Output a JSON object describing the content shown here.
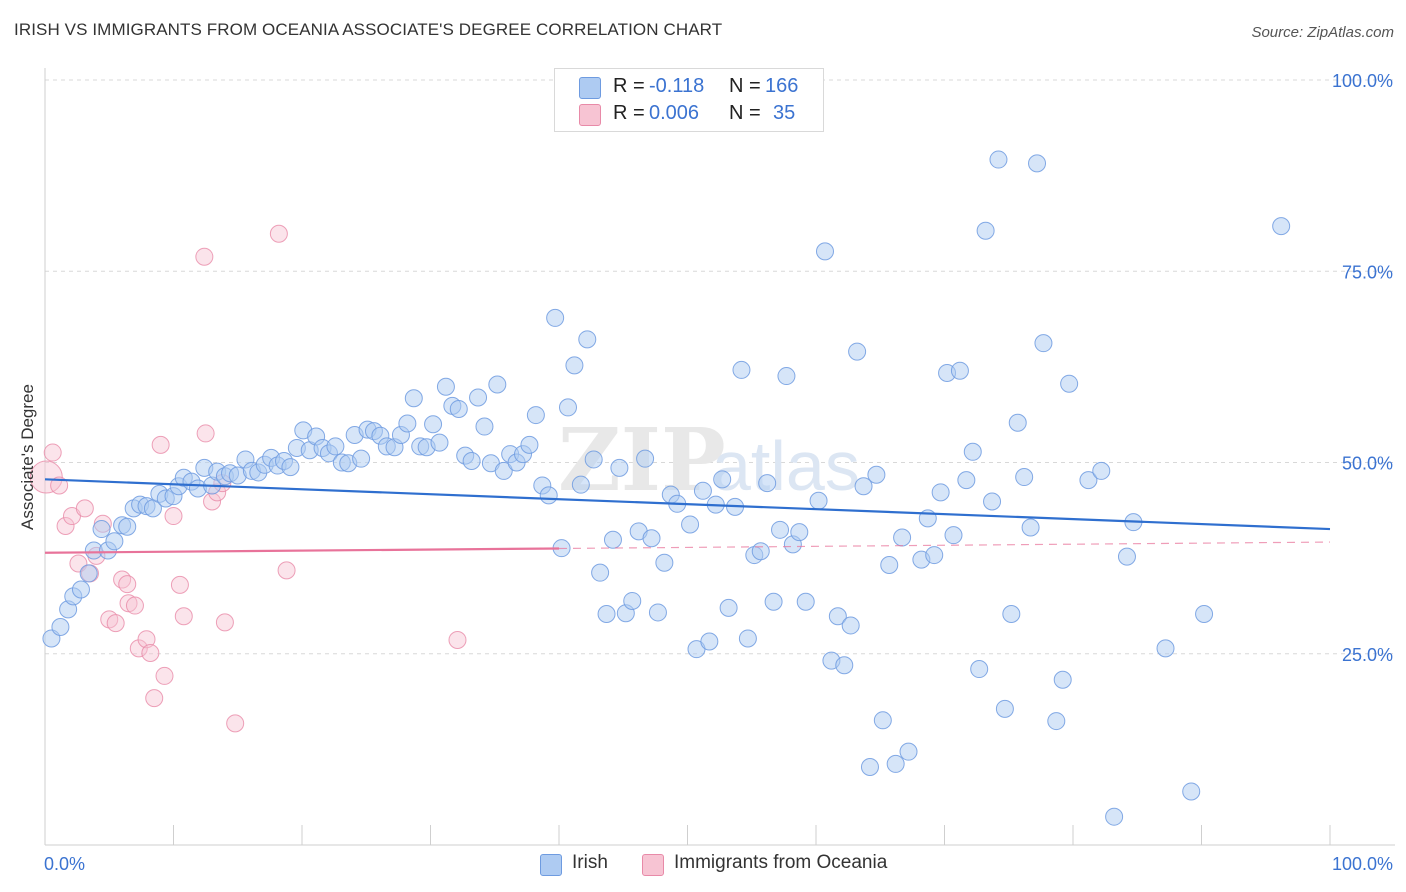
{
  "title": "IRISH VS IMMIGRANTS FROM OCEANIA ASSOCIATE'S DEGREE CORRELATION CHART",
  "source": "Source: ZipAtlas.com",
  "watermark": {
    "zip": "ZIP",
    "atlas": "atlas"
  },
  "colors": {
    "irish_fill": "#aecbf2",
    "irish_stroke": "#6e9be0",
    "irish_line": "#2f6fcf",
    "oceania_fill": "#f7c4d3",
    "oceania_stroke": "#e88aa8",
    "oceania_line": "#e8739a",
    "tick_label": "#3b73d1",
    "grid": "#d8d8d8"
  },
  "stats_legend": [
    {
      "r_label": "R =",
      "r_value": "-0.118",
      "n_label": "N =",
      "n_value": "166"
    },
    {
      "r_label": "R =",
      "r_value": "0.006",
      "n_label": "N =",
      "n_value": "35"
    }
  ],
  "bottom_legend": [
    "Irish",
    "Immigrants from Oceania"
  ],
  "chart_data": {
    "type": "scatter",
    "title": "IRISH VS IMMIGRANTS FROM OCEANIA ASSOCIATE'S DEGREE CORRELATION CHART",
    "xlabel": "",
    "ylabel": "Associate's Degree",
    "xlim": [
      0,
      100
    ],
    "ylim": [
      0,
      100
    ],
    "x_tick_labels": [
      "0.0%",
      "100.0%"
    ],
    "y_tick_labels": [
      "25.0%",
      "50.0%",
      "75.0%",
      "100.0%"
    ],
    "y_ticks": [
      25,
      50,
      75,
      100
    ],
    "grid": "horizontal dashed",
    "legend": "bottom-center",
    "series": [
      {
        "name": "Irish",
        "trend": {
          "x": [
            0,
            100
          ],
          "y": [
            47.8,
            41.3
          ],
          "dashed_from": null
        },
        "points": [
          [
            0.5,
            27.0
          ],
          [
            1.2,
            28.5
          ],
          [
            1.8,
            30.8
          ],
          [
            2.2,
            32.5
          ],
          [
            2.8,
            33.4
          ],
          [
            3.4,
            35.5
          ],
          [
            3.8,
            38.5
          ],
          [
            4.4,
            41.3
          ],
          [
            4.9,
            38.5
          ],
          [
            5.4,
            39.7
          ],
          [
            6.0,
            41.8
          ],
          [
            6.4,
            41.6
          ],
          [
            6.9,
            44.0
          ],
          [
            7.4,
            44.5
          ],
          [
            7.9,
            44.3
          ],
          [
            8.4,
            44.0
          ],
          [
            8.9,
            45.9
          ],
          [
            9.4,
            45.3
          ],
          [
            10.0,
            45.6
          ],
          [
            10.4,
            46.9
          ],
          [
            10.8,
            48.0
          ],
          [
            11.4,
            47.5
          ],
          [
            11.9,
            46.6
          ],
          [
            12.4,
            49.3
          ],
          [
            13.0,
            47.0
          ],
          [
            13.4,
            48.8
          ],
          [
            14.0,
            48.2
          ],
          [
            14.4,
            48.6
          ],
          [
            15.0,
            48.3
          ],
          [
            15.6,
            50.4
          ],
          [
            16.1,
            48.9
          ],
          [
            16.6,
            48.7
          ],
          [
            17.1,
            49.7
          ],
          [
            17.6,
            50.6
          ],
          [
            18.1,
            49.6
          ],
          [
            18.6,
            50.2
          ],
          [
            19.1,
            49.4
          ],
          [
            19.6,
            51.9
          ],
          [
            20.1,
            54.2
          ],
          [
            20.6,
            51.6
          ],
          [
            21.1,
            53.4
          ],
          [
            21.6,
            51.9
          ],
          [
            22.1,
            51.2
          ],
          [
            22.6,
            52.1
          ],
          [
            23.1,
            50.0
          ],
          [
            23.6,
            49.9
          ],
          [
            24.1,
            53.6
          ],
          [
            24.6,
            50.5
          ],
          [
            25.1,
            54.3
          ],
          [
            25.6,
            54.1
          ],
          [
            26.1,
            53.5
          ],
          [
            26.6,
            52.1
          ],
          [
            27.2,
            52.0
          ],
          [
            27.7,
            53.6
          ],
          [
            28.2,
            55.1
          ],
          [
            28.7,
            58.4
          ],
          [
            29.2,
            52.1
          ],
          [
            29.7,
            52.0
          ],
          [
            30.2,
            55.0
          ],
          [
            30.7,
            52.6
          ],
          [
            31.2,
            59.9
          ],
          [
            31.7,
            57.4
          ],
          [
            32.2,
            57.0
          ],
          [
            32.7,
            50.9
          ],
          [
            33.2,
            50.2
          ],
          [
            33.7,
            58.5
          ],
          [
            34.2,
            54.7
          ],
          [
            34.7,
            49.9
          ],
          [
            35.2,
            60.2
          ],
          [
            35.7,
            48.9
          ],
          [
            36.2,
            51.1
          ],
          [
            36.7,
            50.0
          ],
          [
            37.2,
            51.1
          ],
          [
            37.7,
            52.3
          ],
          [
            38.2,
            56.2
          ],
          [
            38.7,
            47.0
          ],
          [
            39.2,
            45.7
          ],
          [
            39.7,
            68.9
          ],
          [
            40.2,
            38.8
          ],
          [
            40.7,
            57.2
          ],
          [
            41.2,
            62.7
          ],
          [
            41.7,
            47.1
          ],
          [
            42.2,
            66.1
          ],
          [
            42.7,
            50.4
          ],
          [
            43.2,
            35.6
          ],
          [
            43.7,
            30.2
          ],
          [
            44.2,
            39.9
          ],
          [
            44.7,
            49.3
          ],
          [
            45.2,
            30.3
          ],
          [
            45.7,
            31.9
          ],
          [
            46.2,
            41.0
          ],
          [
            46.7,
            50.5
          ],
          [
            47.2,
            40.1
          ],
          [
            47.7,
            30.4
          ],
          [
            48.2,
            36.9
          ],
          [
            48.7,
            45.8
          ],
          [
            49.2,
            44.6
          ],
          [
            50.2,
            41.9
          ],
          [
            50.7,
            25.6
          ],
          [
            51.2,
            46.3
          ],
          [
            51.7,
            26.6
          ],
          [
            52.2,
            44.5
          ],
          [
            52.7,
            47.8
          ],
          [
            53.2,
            31.0
          ],
          [
            53.7,
            44.2
          ],
          [
            54.2,
            62.1
          ],
          [
            54.7,
            27.0
          ],
          [
            55.2,
            37.9
          ],
          [
            55.7,
            38.4
          ],
          [
            56.2,
            47.3
          ],
          [
            56.7,
            31.8
          ],
          [
            57.2,
            41.2
          ],
          [
            57.7,
            61.3
          ],
          [
            58.2,
            39.3
          ],
          [
            58.7,
            40.9
          ],
          [
            59.2,
            31.8
          ],
          [
            60.2,
            45.0
          ],
          [
            60.7,
            77.6
          ],
          [
            61.2,
            24.1
          ],
          [
            61.7,
            29.9
          ],
          [
            62.2,
            23.5
          ],
          [
            62.7,
            28.7
          ],
          [
            63.2,
            64.5
          ],
          [
            63.7,
            46.9
          ],
          [
            64.2,
            10.2
          ],
          [
            64.7,
            48.4
          ],
          [
            65.2,
            16.3
          ],
          [
            65.7,
            36.6
          ],
          [
            66.2,
            10.6
          ],
          [
            66.7,
            40.2
          ],
          [
            67.2,
            12.2
          ],
          [
            68.2,
            37.3
          ],
          [
            68.7,
            42.7
          ],
          [
            69.2,
            37.9
          ],
          [
            69.7,
            46.1
          ],
          [
            70.2,
            61.7
          ],
          [
            70.7,
            40.5
          ],
          [
            71.2,
            62.0
          ],
          [
            71.7,
            47.7
          ],
          [
            72.2,
            51.4
          ],
          [
            72.7,
            23.0
          ],
          [
            73.2,
            80.3
          ],
          [
            73.7,
            44.9
          ],
          [
            74.2,
            89.6
          ],
          [
            74.7,
            17.8
          ],
          [
            75.2,
            30.2
          ],
          [
            75.7,
            55.2
          ],
          [
            76.2,
            48.1
          ],
          [
            76.7,
            41.5
          ],
          [
            77.2,
            89.1
          ],
          [
            77.7,
            65.6
          ],
          [
            78.7,
            16.2
          ],
          [
            79.2,
            21.6
          ],
          [
            79.7,
            60.3
          ],
          [
            81.2,
            47.7
          ],
          [
            82.2,
            48.9
          ],
          [
            83.2,
            3.7
          ],
          [
            84.2,
            37.7
          ],
          [
            84.7,
            42.2
          ],
          [
            87.2,
            25.7
          ],
          [
            89.2,
            7.0
          ],
          [
            90.2,
            30.2
          ],
          [
            96.2,
            80.9
          ]
        ]
      },
      {
        "name": "Immigrants from Oceania",
        "trend": {
          "x": [
            0,
            100
          ],
          "y": [
            38.2,
            39.6
          ],
          "dashed_from": 40
        },
        "points": [
          [
            0.1,
            48.1
          ],
          [
            0.6,
            51.3
          ],
          [
            1.1,
            47.0
          ],
          [
            1.6,
            41.7
          ],
          [
            2.1,
            43.0
          ],
          [
            2.6,
            36.8
          ],
          [
            3.1,
            44.0
          ],
          [
            3.5,
            35.5
          ],
          [
            4.0,
            37.8
          ],
          [
            4.5,
            42.0
          ],
          [
            5.0,
            29.5
          ],
          [
            5.5,
            29.0
          ],
          [
            6.0,
            34.7
          ],
          [
            6.4,
            34.1
          ],
          [
            6.5,
            31.6
          ],
          [
            7.0,
            31.3
          ],
          [
            7.3,
            25.7
          ],
          [
            7.9,
            26.9
          ],
          [
            8.2,
            25.1
          ],
          [
            8.5,
            19.2
          ],
          [
            9.0,
            52.3
          ],
          [
            9.3,
            22.1
          ],
          [
            10.0,
            43.0
          ],
          [
            10.5,
            34.0
          ],
          [
            10.8,
            29.9
          ],
          [
            12.4,
            76.9
          ],
          [
            12.5,
            53.8
          ],
          [
            13.0,
            44.9
          ],
          [
            13.4,
            46.1
          ],
          [
            13.8,
            47.3
          ],
          [
            14.0,
            29.1
          ],
          [
            14.8,
            15.9
          ],
          [
            18.2,
            79.9
          ],
          [
            18.8,
            35.9
          ],
          [
            32.1,
            26.8
          ]
        ]
      }
    ]
  }
}
